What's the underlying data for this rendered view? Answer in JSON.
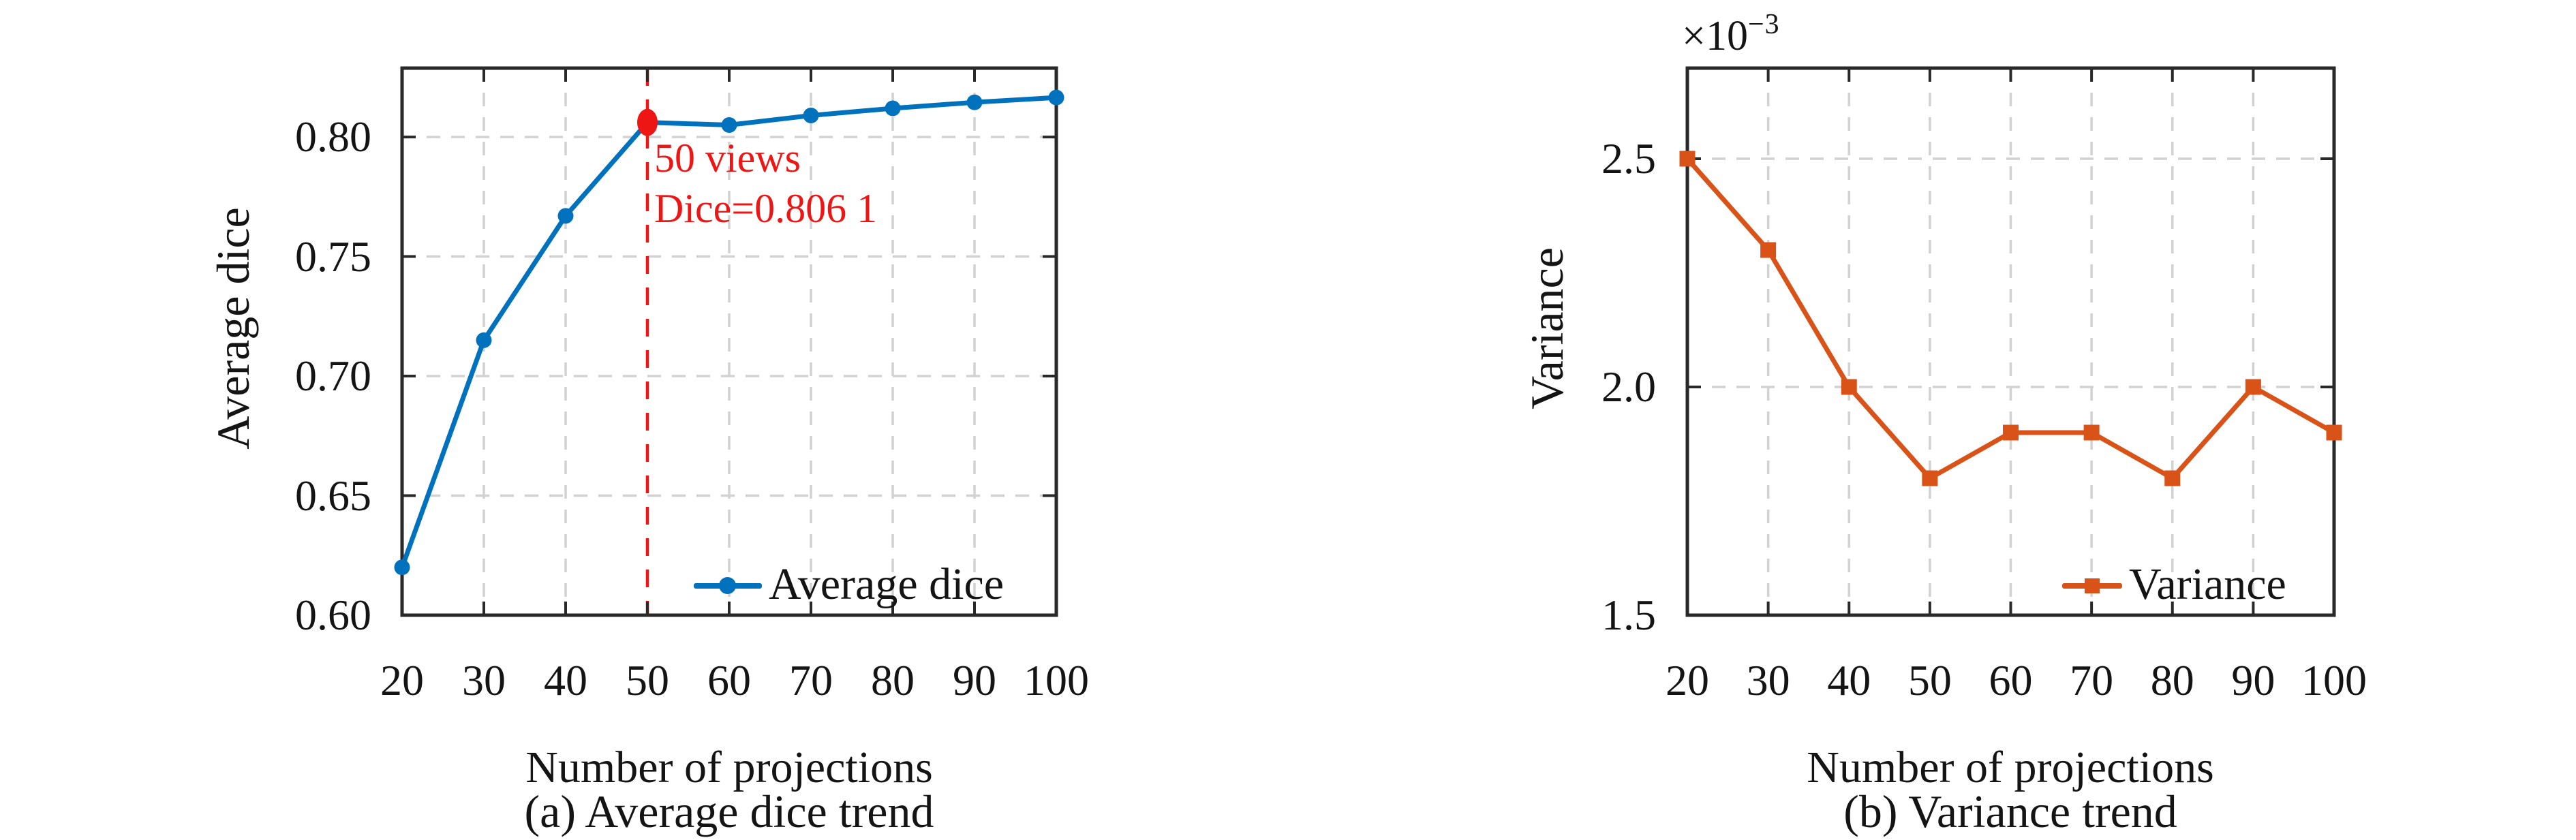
{
  "page": {
    "background": "#ffffff"
  },
  "colors": {
    "series_blue": "#0072bd",
    "series_orange": "#d95319",
    "annotation_red": "#ee1515",
    "axis": "#292929",
    "grid": "#d2d2d2",
    "text": "#141414"
  },
  "chart_data": [
    {
      "id": "a",
      "type": "line",
      "caption": "(a) Average dice trend",
      "xlabel": "Number of projections",
      "ylabel": "Average dice",
      "x": [
        20,
        30,
        40,
        50,
        60,
        70,
        80,
        90,
        100
      ],
      "series": [
        {
          "name": "Average dice",
          "color": "#0072bd",
          "marker": "circle",
          "values": [
            0.62,
            0.715,
            0.767,
            0.8061,
            0.805,
            0.809,
            0.812,
            0.8145,
            0.8165
          ]
        }
      ],
      "xlim": [
        20,
        100
      ],
      "ylim": [
        0.6,
        0.8288
      ],
      "xticks": [
        20,
        30,
        40,
        50,
        60,
        70,
        80,
        90,
        100
      ],
      "xtick_labels": [
        "20",
        "30",
        "40",
        "50",
        "60",
        "70",
        "80",
        "90",
        "100"
      ],
      "yticks": [
        0.6,
        0.65,
        0.7,
        0.75,
        0.8
      ],
      "ytick_labels": [
        "0.60",
        "0.65",
        "0.70",
        "0.75",
        "0.80"
      ],
      "grid": true,
      "grid_skip_x": [
        50
      ],
      "legend": {
        "label": "Average dice",
        "position": "bottom-right"
      },
      "annotation": {
        "x": 50,
        "y": 0.8061,
        "lines": [
          "50 views",
          "Dice=0.806 1"
        ],
        "color": "#ee1515",
        "vline_dashed": true
      }
    },
    {
      "id": "b",
      "type": "line",
      "caption": "(b) Variance trend",
      "xlabel": "Number of projections",
      "ylabel": "Variance",
      "y_offset": {
        "base": "×10",
        "exp": "−3"
      },
      "y_unit_multiplier": 0.001,
      "x": [
        20,
        30,
        40,
        50,
        60,
        70,
        80,
        90,
        100
      ],
      "series": [
        {
          "name": "Variance",
          "color": "#d95319",
          "marker": "square",
          "values": [
            2.5,
            2.3,
            2.0,
            1.8,
            1.9,
            1.9,
            1.8,
            2.0,
            1.9
          ]
        }
      ],
      "xlim": [
        20,
        100
      ],
      "ylim": [
        1.5,
        2.6985
      ],
      "xticks": [
        20,
        30,
        40,
        50,
        60,
        70,
        80,
        90,
        100
      ],
      "xtick_labels": [
        "20",
        "30",
        "40",
        "50",
        "60",
        "70",
        "80",
        "90",
        "100"
      ],
      "yticks": [
        1.5,
        2.0,
        2.5
      ],
      "ytick_labels": [
        "1.5",
        "2.0",
        "2.5"
      ],
      "grid": true,
      "grid_skip_x": [],
      "legend": {
        "label": "Variance",
        "position": "bottom-right"
      }
    }
  ]
}
